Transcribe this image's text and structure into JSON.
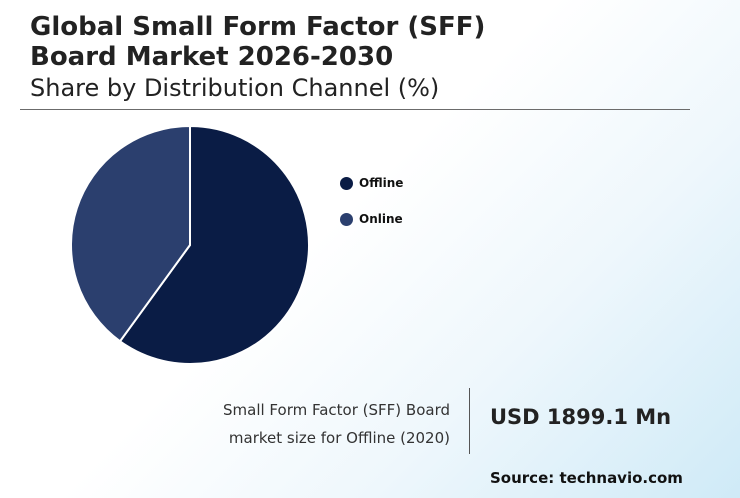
{
  "header": {
    "title_line1": "Global Small Form Factor (SFF)",
    "title_line2": "Board Market 2026-2030",
    "subtitle": "Share by Distribution Channel (%)"
  },
  "chart_data": {
    "type": "pie",
    "title": "Share by Distribution Channel (%)",
    "categories": [
      "Offline",
      "Online"
    ],
    "values": [
      60,
      40
    ],
    "colors": [
      "#0a1c45",
      "#2b3f6e"
    ],
    "start_angle_deg": 0,
    "direction": "clockwise",
    "legend_position": "right"
  },
  "stat": {
    "label_line1": "Small Form Factor (SFF) Board",
    "label_line2": "market size for Offline (2020)",
    "value": "USD 1899.1 Mn"
  },
  "source": "Source: technavio.com"
}
